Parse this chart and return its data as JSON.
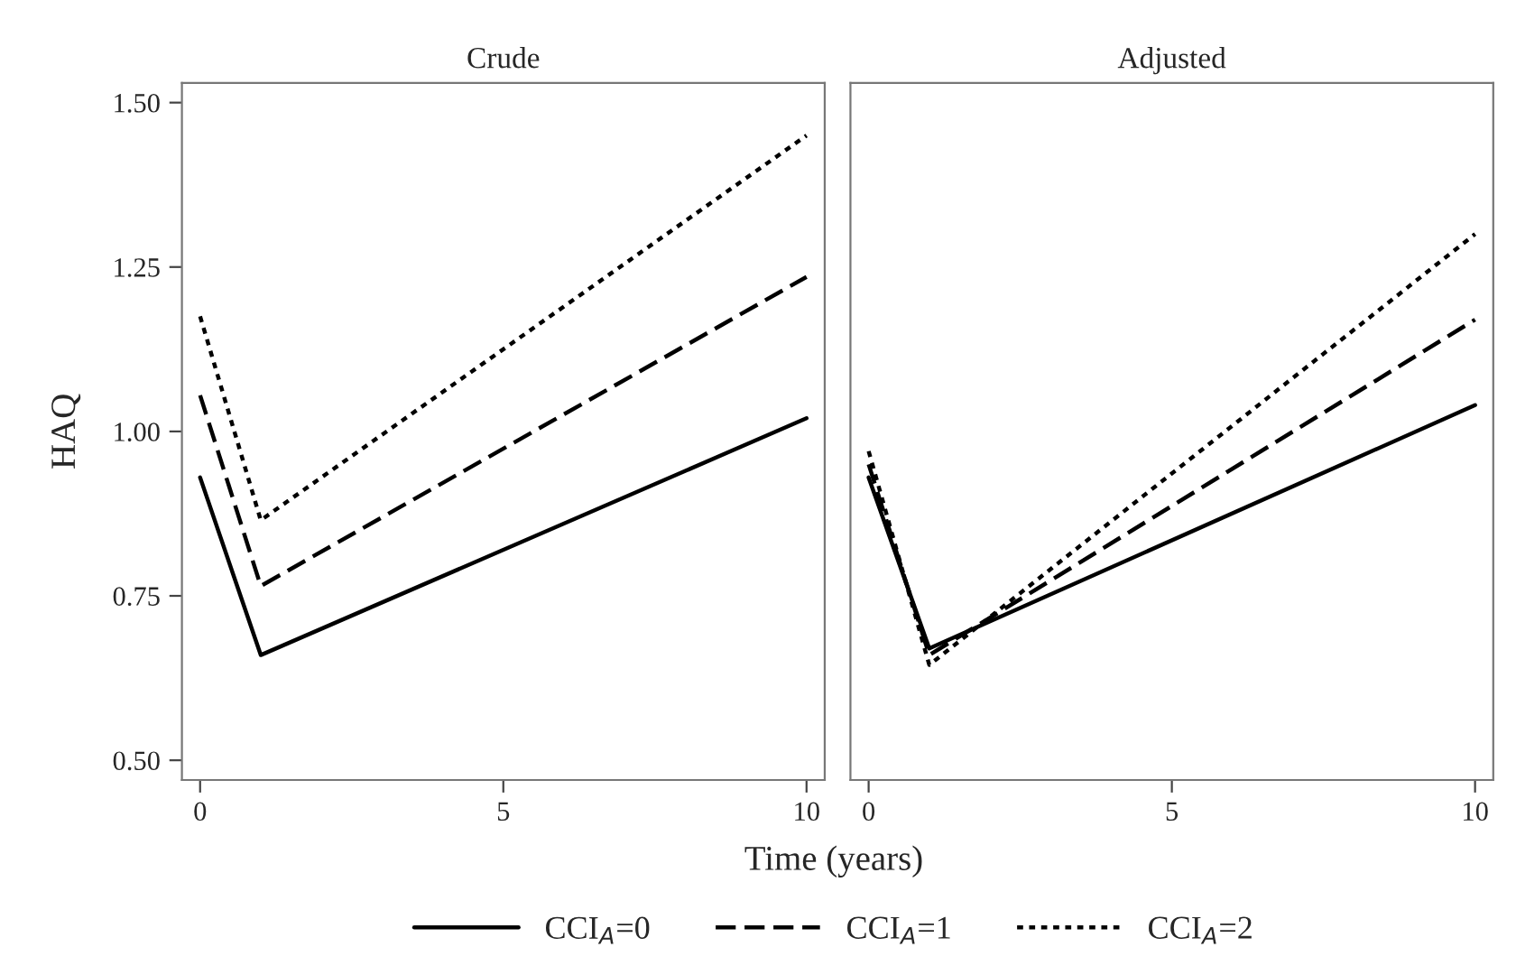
{
  "chart_data": [
    {
      "type": "line",
      "title": "Crude",
      "ylabel": "HAQ",
      "xlabel": "Time (years)",
      "x": [
        0,
        1,
        10
      ],
      "xlim": [
        -0.3,
        10.3
      ],
      "xticks": [
        0,
        5,
        10
      ],
      "ylim": [
        0.47,
        1.53
      ],
      "yticks": [
        {
          "value": 0.5,
          "label": "0.50"
        },
        {
          "value": 0.75,
          "label": "0.75"
        },
        {
          "value": 1.0,
          "label": "1.00"
        },
        {
          "value": 1.25,
          "label": "1.25"
        },
        {
          "value": 1.5,
          "label": "1.50"
        }
      ],
      "legend": "bottom",
      "grid": false,
      "series": [
        {
          "name": "CCI$_{A}$=0",
          "color": "#000000",
          "line_style": "solid",
          "values": [
            0.93,
            0.66,
            1.02
          ]
        },
        {
          "name": "CCI$_{A}$=1",
          "color": "#000000",
          "line_style": "dashed",
          "values": [
            1.055,
            0.765,
            1.235
          ]
        },
        {
          "name": "CCI$_{A}$=2",
          "color": "#000000",
          "line_style": "dotted",
          "values": [
            1.175,
            0.865,
            1.45
          ]
        }
      ]
    },
    {
      "type": "line",
      "title": "Adjusted",
      "x": [
        0,
        1,
        10
      ],
      "xlim": [
        -0.3,
        10.3
      ],
      "xticks": [
        0,
        5,
        10
      ],
      "ylim": [
        0.47,
        1.53
      ],
      "tick_labels": "x",
      "grid": false,
      "series": [
        {
          "color": "#000000",
          "line_style": "solid",
          "values": [
            0.93,
            0.67,
            1.04
          ]
        },
        {
          "color": "#000000",
          "line_style": "dashed",
          "values": [
            0.95,
            0.66,
            1.17
          ]
        },
        {
          "color": "#000000",
          "line_style": "dotted",
          "values": [
            0.97,
            0.645,
            1.3
          ]
        }
      ]
    }
  ]
}
